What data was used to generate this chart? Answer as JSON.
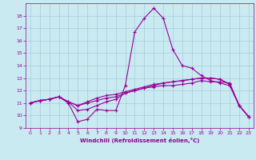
{
  "x": [
    0,
    1,
    2,
    3,
    4,
    5,
    6,
    7,
    8,
    9,
    10,
    11,
    12,
    13,
    14,
    15,
    16,
    17,
    18,
    19,
    20,
    21,
    22,
    23
  ],
  "line1": [
    11.0,
    11.2,
    11.3,
    11.5,
    11.0,
    9.5,
    9.7,
    10.5,
    10.4,
    10.4,
    12.4,
    16.7,
    17.8,
    18.6,
    17.8,
    15.3,
    14.0,
    13.8,
    13.2,
    12.8,
    12.6,
    12.4,
    10.8,
    9.9
  ],
  "line2": [
    11.0,
    11.2,
    11.3,
    11.5,
    11.1,
    10.4,
    10.5,
    10.8,
    11.1,
    11.3,
    11.8,
    12.0,
    12.2,
    12.3,
    12.4,
    12.4,
    12.5,
    12.6,
    12.8,
    12.7,
    12.7,
    12.6,
    10.8,
    9.9
  ],
  "line3": [
    11.0,
    11.2,
    11.3,
    11.5,
    11.1,
    10.8,
    11.0,
    11.2,
    11.4,
    11.5,
    11.8,
    12.0,
    12.2,
    12.4,
    12.6,
    12.7,
    12.8,
    12.9,
    13.0,
    13.0,
    12.9,
    12.5,
    10.8,
    9.9
  ],
  "line4": [
    11.0,
    11.2,
    11.3,
    11.5,
    11.1,
    10.8,
    11.1,
    11.4,
    11.6,
    11.7,
    11.9,
    12.1,
    12.3,
    12.5,
    12.6,
    12.7,
    12.8,
    12.9,
    13.0,
    13.0,
    12.9,
    12.5,
    10.8,
    9.9
  ],
  "line_color": "#990099",
  "bg_color": "#c8eaf0",
  "grid_color": "#aaccdd",
  "xlabel": "Windchill (Refroidissement éolien,°C)",
  "xlabel_color": "#880088",
  "xlim": [
    -0.5,
    23.5
  ],
  "ylim": [
    9,
    19
  ],
  "yticks": [
    9,
    10,
    11,
    12,
    13,
    14,
    15,
    16,
    17,
    18
  ],
  "xticks": [
    0,
    1,
    2,
    3,
    4,
    5,
    6,
    7,
    8,
    9,
    10,
    11,
    12,
    13,
    14,
    15,
    16,
    17,
    18,
    19,
    20,
    21,
    22,
    23
  ],
  "marker": "+",
  "tick_fontsize": 4.5,
  "xlabel_fontsize": 5.0,
  "lw": 0.8,
  "ms": 3.0
}
